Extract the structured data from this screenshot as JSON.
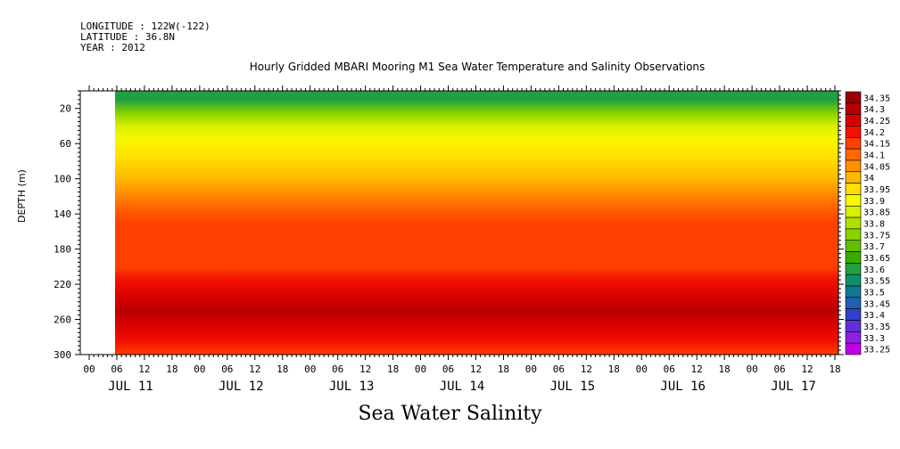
{
  "header": {
    "longitude": "LONGITUDE : 122W(-122)",
    "latitude": "LATITUDE : 36.8N",
    "year": "YEAR : 2012"
  },
  "title": "Hourly Gridded MBARI Mooring M1 Sea Water Temperature and Salinity Observations",
  "bottom_title": "Sea Water Salinity",
  "chart_data": {
    "type": "heatmap",
    "title": "Hourly Gridded MBARI Mooring M1 Sea Water Temperature and Salinity Observations",
    "variable": "Sea Water Salinity",
    "ylabel": "DEPTH (m)",
    "y_reversed": true,
    "ylim": [
      300,
      0
    ],
    "y_ticks": [
      20,
      60,
      100,
      140,
      180,
      220,
      260,
      300
    ],
    "x_hour_ticks": [
      "00",
      "06",
      "12",
      "18",
      "00",
      "06",
      "12",
      "18",
      "00",
      "06",
      "12",
      "18",
      "00",
      "06",
      "12",
      "18",
      "00",
      "06",
      "12",
      "18",
      "00",
      "06",
      "12",
      "18",
      "00",
      "06",
      "12",
      "18"
    ],
    "x_day_labels": [
      "JUL 11",
      "JUL 12",
      "JUL 13",
      "JUL 14",
      "JUL 15",
      "JUL 16",
      "JUL 17"
    ],
    "x_data_start": "JUL 11 06",
    "colorbar": {
      "levels": [
        "34.35",
        "34.3",
        "34.25",
        "34.2",
        "34.15",
        "34.1",
        "34.05",
        "34",
        "33.95",
        "33.9",
        "33.85",
        "33.8",
        "33.75",
        "33.7",
        "33.65",
        "33.6",
        "33.55",
        "33.5",
        "33.45",
        "33.4",
        "33.35",
        "33.3",
        "33.25"
      ],
      "colors": [
        "#9a0000",
        "#b80000",
        "#d80000",
        "#f21000",
        "#ff4000",
        "#ff6a00",
        "#ff9000",
        "#ffb800",
        "#ffe000",
        "#f8f800",
        "#d8f000",
        "#b0e000",
        "#88d200",
        "#60c000",
        "#38ac00",
        "#20a040",
        "#10906a",
        "#107890",
        "#2060b0",
        "#3040c8",
        "#6030d8",
        "#9020e0",
        "#c000e8"
      ]
    },
    "profile": [
      {
        "depth": 10,
        "salinity": 33.6
      },
      {
        "depth": 25,
        "salinity": 33.75
      },
      {
        "depth": 40,
        "salinity": 33.85
      },
      {
        "depth": 55,
        "salinity": 33.9
      },
      {
        "depth": 75,
        "salinity": 33.95
      },
      {
        "depth": 100,
        "salinity": 34.0
      },
      {
        "depth": 115,
        "salinity": 34.05
      },
      {
        "depth": 130,
        "salinity": 34.1
      },
      {
        "depth": 150,
        "salinity": 34.15
      },
      {
        "depth": 200,
        "salinity": 34.15
      },
      {
        "depth": 215,
        "salinity": 34.2
      },
      {
        "depth": 235,
        "salinity": 34.25
      },
      {
        "depth": 250,
        "salinity": 34.3
      },
      {
        "depth": 265,
        "salinity": 34.25
      },
      {
        "depth": 285,
        "salinity": 34.2
      },
      {
        "depth": 300,
        "salinity": 34.15
      }
    ]
  }
}
